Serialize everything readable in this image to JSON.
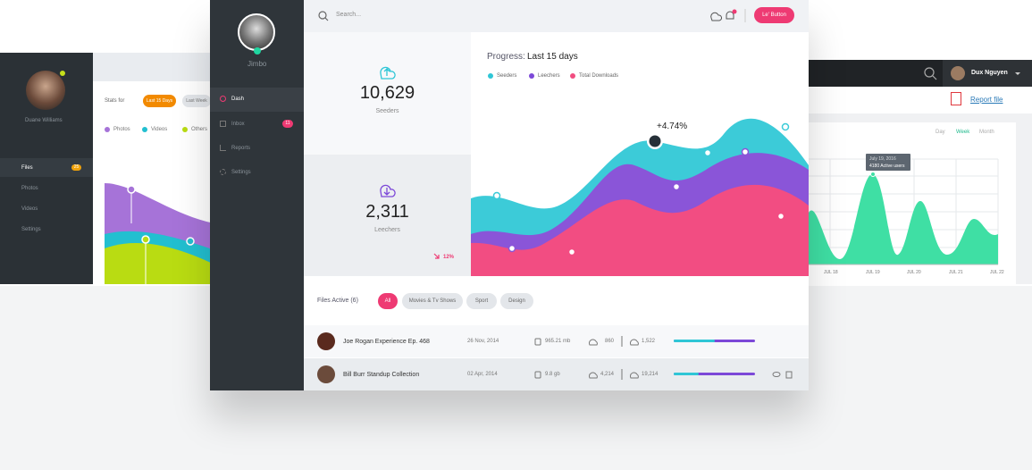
{
  "left_panel": {
    "user_name": "Duane Williams",
    "nav": [
      {
        "label": "Files",
        "badge": "25"
      },
      {
        "label": "Photos"
      },
      {
        "label": "Videos"
      },
      {
        "label": "Settings"
      }
    ],
    "stats_label": "Stats for",
    "ranges": [
      "Last 15 Days",
      "Last Week"
    ],
    "legend": [
      "Photos",
      "Videos",
      "Others"
    ]
  },
  "main_panel": {
    "user_name": "Jimbo",
    "nav": [
      {
        "label": "Dash"
      },
      {
        "label": "Inbox",
        "badge": "11"
      },
      {
        "label": "Reports"
      },
      {
        "label": "Settings"
      }
    ],
    "search_placeholder": "Search...",
    "button": "Le' Button",
    "stats": [
      {
        "value": "10,629",
        "label": "Seeders"
      },
      {
        "value": "2,311",
        "label": "Leechers",
        "change": "12%"
      }
    ],
    "progress": {
      "title": "Progress:",
      "period": "Last 15 days",
      "legend": [
        "Seeders",
        "Leechers",
        "Total Downloads"
      ],
      "annotation": "+4.74%"
    },
    "files": {
      "title": "Files Active (6)",
      "filters": [
        "All",
        "Movies & Tv Shows",
        "Sport",
        "Design"
      ],
      "rows": [
        {
          "name": "Joe Rogan Experience Ep. 468",
          "date": "26 Nov, 2014",
          "size": "965.21 mb",
          "uploads": "860",
          "downloads": "1,522"
        },
        {
          "name": "Bill Burr Standup Collection",
          "date": "02 Apr, 2014",
          "size": "9.8 gb",
          "uploads": "4,214",
          "downloads": "19,214"
        }
      ]
    }
  },
  "right_panel": {
    "user_name": "Dux Nguyen",
    "report_link": "Report file",
    "ranges": [
      "Day",
      "Week",
      "Month"
    ],
    "tooltip": {
      "date": "July 19, 2016",
      "text": "4180 Active users"
    },
    "x_labels": [
      "JUL 18",
      "JUL 19",
      "JUL 20",
      "JUL 21",
      "JUL 22"
    ]
  }
}
